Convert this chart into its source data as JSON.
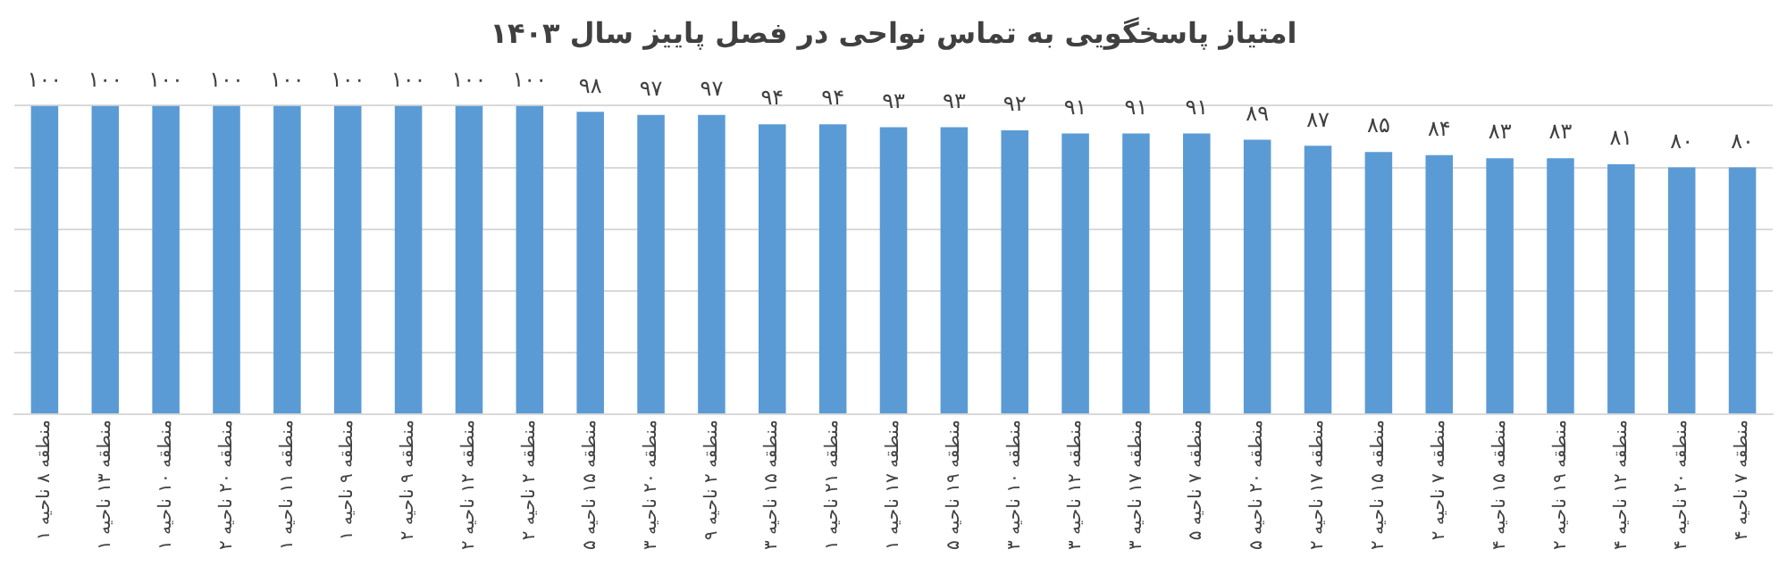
{
  "chart_data": {
    "type": "bar",
    "title": "امتیاز پاسخگویی به تماس نواحی در فصل پاییز سال ۱۴۰۳",
    "categories": [
      "منطقه ۸ ناحیه ۱",
      "منطقه ۱۳ ناحیه ۱",
      "منطقه ۱۰ ناحیه ۱",
      "منطقه ۲۰ ناحیه ۲",
      "منطقه ۱۱ ناحیه ۱",
      "منطقه ۹ ناحیه ۱",
      "منطقه ۹ ناحیه ۲",
      "منطقه ۱۲ ناحیه ۲",
      "منطقه ۲ ناحیه ۲",
      "منطقه ۱۵ ناحیه ۵",
      "منطقه ۲۰ ناحیه ۳",
      "منطقه ۲ ناحیه ۹",
      "منطقه ۱۵ ناحیه ۳",
      "منطقه ۲۱ ناحیه ۱",
      "منطقه ۱۷ ناحیه ۱",
      "منطقه ۱۹ ناحیه ۵",
      "منطقه ۱۰ ناحیه ۳",
      "منطقه ۱۲ ناحیه ۳",
      "منطقه ۱۷ ناحیه ۳",
      "منطقه ۷ ناحیه ۵",
      "منطقه ۲۰ ناحیه ۵",
      "منطقه ۱۷ ناحیه ۲",
      "منطقه ۱۵ ناحیه ۲",
      "منطقه ۷ ناحیه ۲",
      "منطقه ۱۵ ناحیه ۴",
      "منطقه ۱۹ ناحیه ۲",
      "منطقه ۱۲ ناحیه ۴",
      "منطقه ۲۰ ناحیه ۴",
      "منطقه ۷ ناحیه ۴"
    ],
    "values": [
      100,
      100,
      100,
      100,
      100,
      100,
      100,
      100,
      100,
      98,
      97,
      97,
      94,
      94,
      93,
      93,
      92,
      91,
      91,
      91,
      89,
      87,
      85,
      84,
      83,
      83,
      81,
      80,
      80
    ],
    "value_labels": [
      "۱۰۰",
      "۱۰۰",
      "۱۰۰",
      "۱۰۰",
      "۱۰۰",
      "۱۰۰",
      "۱۰۰",
      "۱۰۰",
      "۱۰۰",
      "۹۸",
      "۹۷",
      "۹۷",
      "۹۴",
      "۹۴",
      "۹۳",
      "۹۳",
      "۹۲",
      "۹۱",
      "۹۱",
      "۹۱",
      "۸۹",
      "۸۷",
      "۸۵",
      "۸۴",
      "۸۳",
      "۸۳",
      "۸۱",
      "۸۰",
      "۸۰"
    ],
    "color": "#5b9bd5",
    "ylim": [
      0,
      100
    ],
    "yticks": [
      {
        "value": 0,
        "label": null
      },
      {
        "value": 20,
        "label": null
      },
      {
        "value": 40,
        "label": null
      },
      {
        "value": 60,
        "label": null
      },
      {
        "value": 80,
        "label": null
      },
      {
        "value": 100,
        "label": null
      }
    ],
    "grid": "y",
    "tick_labels": "x"
  }
}
